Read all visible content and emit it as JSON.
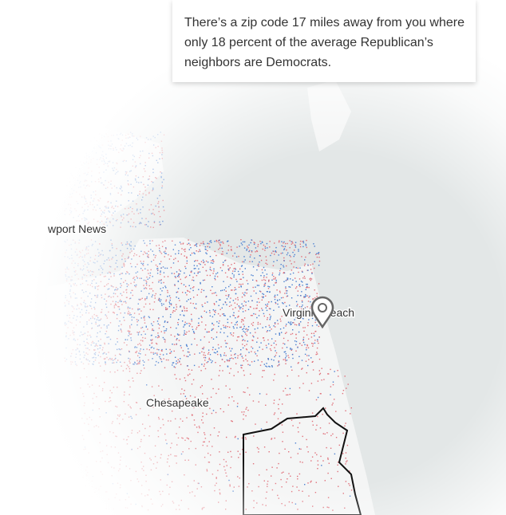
{
  "tooltip": {
    "text": "There’s a zip code 17 miles away from you where only 18 percent of the average Republican’s neighbors are Democrats."
  },
  "places": [
    {
      "label": "wport News"
    },
    {
      "label": "Virginia Beach"
    },
    {
      "label": "Chesapeake"
    }
  ]
}
